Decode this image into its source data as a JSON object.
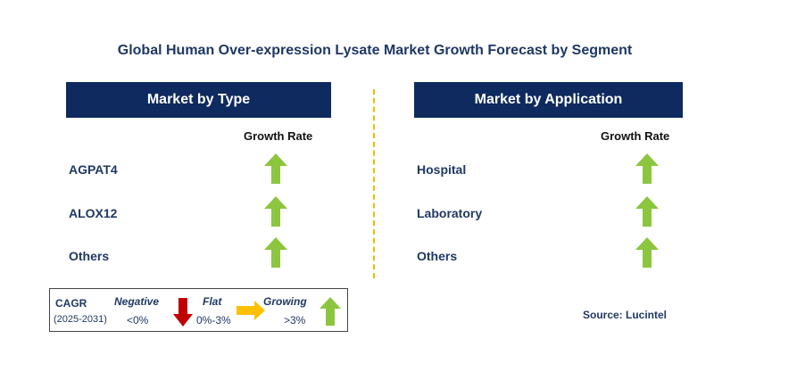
{
  "title": "Global Human Over-expression Lysate Market Growth Forecast by Segment",
  "type_panel": {
    "header": "Market by Type",
    "growth_label": "Growth Rate",
    "rows": [
      {
        "label": "AGPAT4",
        "trend": "growing"
      },
      {
        "label": "ALOX12",
        "trend": "growing"
      },
      {
        "label": "Others",
        "trend": "growing"
      }
    ]
  },
  "application_panel": {
    "header": "Market by Application",
    "growth_label": "Growth Rate",
    "rows": [
      {
        "label": "Hospital",
        "trend": "growing"
      },
      {
        "label": "Laboratory",
        "trend": "growing"
      },
      {
        "label": "Others",
        "trend": "growing"
      }
    ]
  },
  "legend": {
    "cagr_label": "CAGR",
    "period": "(2025-2031)",
    "negative": {
      "label": "Negative",
      "range": "<0%",
      "icon": "red-down-arrow"
    },
    "flat": {
      "label": "Flat",
      "range": "0%-3%",
      "icon": "yellow-right-arrow"
    },
    "growing": {
      "label": "Growing",
      "range": ">3%",
      "icon": "green-up-arrow"
    }
  },
  "source": "Source: Lucintel",
  "colors": {
    "header_bg": "#0e2a5e",
    "growing": "#8cc63f",
    "negative": "#c00000",
    "flat": "#ffc000",
    "divider": "#f5b800"
  }
}
